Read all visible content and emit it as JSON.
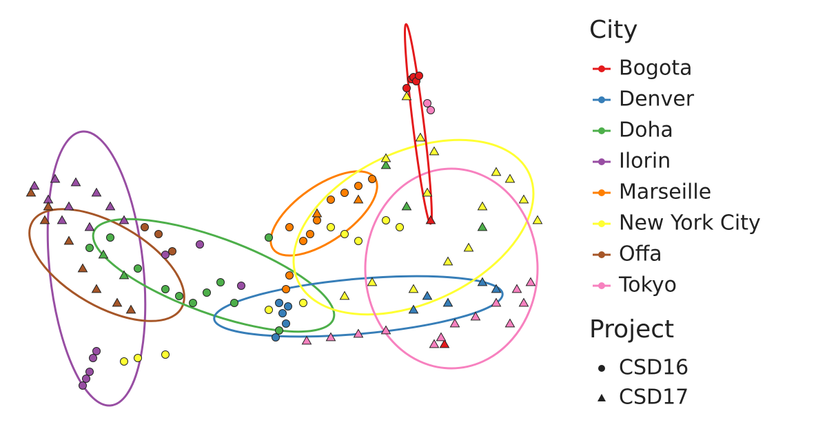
{
  "chart_data": {
    "type": "scatter",
    "xlim": [
      0,
      770
    ],
    "ylim": [
      0,
      580
    ],
    "legend_title": "City",
    "project_title": "Project",
    "projects": [
      {
        "name": "CSD16",
        "marker": "circle"
      },
      {
        "name": "CSD17",
        "marker": "triangle"
      }
    ],
    "series": [
      {
        "name": "Bogota",
        "color": "#e41a1c",
        "x": [
          567,
          570,
          574,
          560,
          578,
          595,
          615
        ],
        "y": [
          485,
          488,
          482,
          472,
          490,
          280,
          100
        ],
        "project": [
          0,
          0,
          0,
          0,
          0,
          1,
          1
        ]
      },
      {
        "name": "Denver",
        "color": "#377eb8",
        "x": [
          375,
          385,
          370,
          380,
          388,
          590,
          620,
          670,
          690,
          570
        ],
        "y": [
          160,
          130,
          110,
          145,
          155,
          170,
          160,
          190,
          180,
          150
        ],
        "project": [
          0,
          0,
          0,
          0,
          0,
          1,
          1,
          1,
          1,
          1
        ]
      },
      {
        "name": "Doha",
        "color": "#4daf4a",
        "x": [
          100,
          130,
          210,
          230,
          250,
          270,
          290,
          310,
          170,
          360,
          375,
          120,
          150,
          530,
          670,
          560
        ],
        "y": [
          240,
          255,
          180,
          170,
          160,
          175,
          190,
          160,
          210,
          255,
          120,
          230,
          200,
          360,
          270,
          300
        ],
        "project": [
          0,
          0,
          0,
          0,
          0,
          0,
          0,
          0,
          0,
          0,
          0,
          1,
          1,
          1,
          1,
          1
        ]
      },
      {
        "name": "Ilorin",
        "color": "#984ea3",
        "x": [
          95,
          100,
          105,
          90,
          110,
          210,
          320,
          260,
          20,
          50,
          80,
          110,
          60,
          130,
          150,
          70,
          100,
          40
        ],
        "y": [
          50,
          60,
          80,
          40,
          90,
          230,
          185,
          245,
          330,
          340,
          335,
          320,
          280,
          300,
          280,
          300,
          270,
          310
        ],
        "project": [
          0,
          0,
          0,
          0,
          0,
          0,
          0,
          0,
          1,
          1,
          1,
          1,
          1,
          1,
          1,
          1,
          1,
          1
        ]
      },
      {
        "name": "Marseille",
        "color": "#ff7f00",
        "x": [
          390,
          410,
          430,
          450,
          470,
          490,
          510,
          390,
          385,
          420,
          430,
          490
        ],
        "y": [
          270,
          250,
          280,
          310,
          320,
          330,
          340,
          200,
          180,
          260,
          290,
          310
        ],
        "project": [
          0,
          0,
          0,
          0,
          0,
          0,
          0,
          0,
          0,
          0,
          1,
          1
        ]
      },
      {
        "name": "New York City",
        "color": "#ffff33",
        "x": [
          170,
          210,
          150,
          450,
          470,
          530,
          550,
          490,
          410,
          360,
          560,
          580,
          600,
          690,
          730,
          750,
          620,
          570,
          470,
          510,
          650,
          670,
          590,
          530,
          710
        ],
        "y": [
          80,
          85,
          75,
          270,
          260,
          280,
          270,
          250,
          160,
          150,
          460,
          400,
          380,
          350,
          310,
          280,
          220,
          180,
          170,
          190,
          240,
          300,
          320,
          370,
          340
        ],
        "project": [
          0,
          0,
          0,
          0,
          0,
          0,
          0,
          0,
          0,
          0,
          1,
          1,
          1,
          1,
          1,
          1,
          1,
          1,
          1,
          1,
          1,
          1,
          1,
          1,
          1
        ]
      },
      {
        "name": "Offa",
        "color": "#a65628",
        "x": [
          180,
          200,
          220,
          15,
          40,
          70,
          110,
          140,
          160,
          35,
          90
        ],
        "y": [
          270,
          260,
          235,
          320,
          300,
          250,
          180,
          160,
          150,
          280,
          210
        ],
        "project": [
          0,
          0,
          0,
          1,
          1,
          1,
          1,
          1,
          1,
          1,
          1
        ]
      },
      {
        "name": "Tokyo",
        "color": "#f781bf",
        "x": [
          590,
          595,
          610,
          630,
          660,
          690,
          720,
          740,
          415,
          450,
          490,
          530,
          600,
          730,
          710
        ],
        "y": [
          450,
          440,
          110,
          130,
          140,
          160,
          180,
          190,
          105,
          110,
          115,
          120,
          100,
          160,
          130
        ],
        "project": [
          0,
          0,
          1,
          1,
          1,
          1,
          1,
          1,
          1,
          1,
          1,
          1,
          1,
          1,
          1
        ]
      }
    ]
  }
}
